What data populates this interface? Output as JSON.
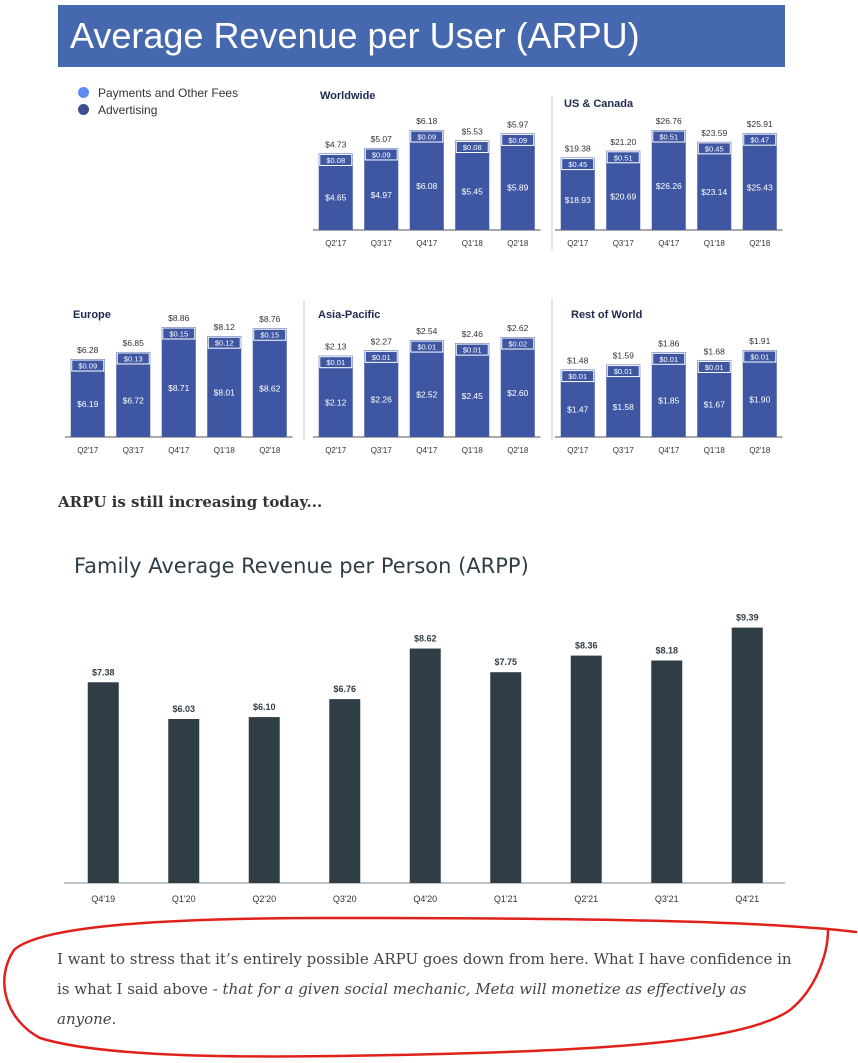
{
  "banner": {
    "title": "Average Revenue per User (ARPU)"
  },
  "legend": [
    {
      "label": "Payments and Other Fees",
      "color": "#5B8DEF"
    },
    {
      "label": "Advertising",
      "color": "#3B4F8F"
    }
  ],
  "colors": {
    "banner": "#4668AF",
    "bar": "#3F57A3",
    "bar_cap": "#3F57A3",
    "arpp_bar": "#2F3E46",
    "annotation": "#E0201B"
  },
  "chart_data": [
    {
      "type": "bar",
      "title": "Worldwide",
      "categories": [
        "Q2'17",
        "Q3'17",
        "Q4'17",
        "Q1'18",
        "Q2'18"
      ],
      "series": [
        {
          "name": "Advertising",
          "values": [
            4.65,
            4.97,
            6.08,
            5.45,
            5.89
          ],
          "labels": [
            "$4.65",
            "$4.97",
            "$6.08",
            "$5.45",
            "$5.89"
          ]
        },
        {
          "name": "Payments and Other Fees",
          "values": [
            0.08,
            0.09,
            0.09,
            0.08,
            0.09
          ],
          "labels": [
            "$0.08",
            "$0.09",
            "$0.09",
            "$0.08",
            "$0.09"
          ]
        }
      ],
      "totals": [
        4.73,
        5.07,
        6.18,
        5.53,
        5.97
      ],
      "total_labels": [
        "$4.73",
        "$5.07",
        "$6.18",
        "$5.53",
        "$5.97"
      ]
    },
    {
      "type": "bar",
      "title": "US & Canada",
      "categories": [
        "Q2'17",
        "Q3'17",
        "Q4'17",
        "Q1'18",
        "Q2'18"
      ],
      "series": [
        {
          "name": "Advertising",
          "values": [
            18.93,
            20.69,
            26.26,
            23.14,
            25.43
          ],
          "labels": [
            "$18.93",
            "$20.69",
            "$26.26",
            "$23.14",
            "$25.43"
          ]
        },
        {
          "name": "Payments and Other Fees",
          "values": [
            0.45,
            0.51,
            0.51,
            0.45,
            0.47
          ],
          "labels": [
            "$0.45",
            "$0.51",
            "$0.51",
            "$0.45",
            "$0.47"
          ]
        }
      ],
      "totals": [
        19.38,
        21.2,
        26.76,
        23.59,
        25.91
      ],
      "total_labels": [
        "$19.38",
        "$21.20",
        "$26.76",
        "$23.59",
        "$25.91"
      ]
    },
    {
      "type": "bar",
      "title": "Europe",
      "categories": [
        "Q2'17",
        "Q3'17",
        "Q4'17",
        "Q1'18",
        "Q2'18"
      ],
      "series": [
        {
          "name": "Advertising",
          "values": [
            6.19,
            6.72,
            8.71,
            8.01,
            8.62
          ],
          "labels": [
            "$6.19",
            "$6.72",
            "$8.71",
            "$8.01",
            "$8.62"
          ]
        },
        {
          "name": "Payments and Other Fees",
          "values": [
            0.09,
            0.13,
            0.15,
            0.12,
            0.15
          ],
          "labels": [
            "$0.09",
            "$0.13",
            "$0.15",
            "$0.12",
            "$0.15"
          ]
        }
      ],
      "totals": [
        6.28,
        6.85,
        8.86,
        8.12,
        8.76
      ],
      "total_labels": [
        "$6.28",
        "$6.85",
        "$8.86",
        "$8.12",
        "$8.76"
      ]
    },
    {
      "type": "bar",
      "title": "Asia-Pacific",
      "categories": [
        "Q2'17",
        "Q3'17",
        "Q4'17",
        "Q1'18",
        "Q2'18"
      ],
      "series": [
        {
          "name": "Advertising",
          "values": [
            2.12,
            2.26,
            2.52,
            2.45,
            2.6
          ],
          "labels": [
            "$2.12",
            "$2.26",
            "$2.52",
            "$2.45",
            "$2.60"
          ]
        },
        {
          "name": "Payments and Other Fees",
          "values": [
            0.01,
            0.01,
            0.01,
            0.01,
            0.02
          ],
          "labels": [
            "$0.01",
            "$0.01",
            "$0.01",
            "$0.01",
            "$0.02"
          ]
        }
      ],
      "totals": [
        2.13,
        2.27,
        2.54,
        2.46,
        2.62
      ],
      "total_labels": [
        "$2.13",
        "$2.27",
        "$2.54",
        "$2.46",
        "$2.62"
      ]
    },
    {
      "type": "bar",
      "title": "Rest of World",
      "categories": [
        "Q2'17",
        "Q3'17",
        "Q4'17",
        "Q1'18",
        "Q2'18"
      ],
      "series": [
        {
          "name": "Advertising",
          "values": [
            1.47,
            1.58,
            1.85,
            1.67,
            1.9
          ],
          "labels": [
            "$1.47",
            "$1.58",
            "$1.85",
            "$1.67",
            "$1.90"
          ]
        },
        {
          "name": "Payments and Other Fees",
          "values": [
            0.01,
            0.01,
            0.01,
            0.01,
            0.01
          ],
          "labels": [
            "$0.01",
            "$0.01",
            "$0.01",
            "$0.01",
            "$0.01"
          ]
        }
      ],
      "totals": [
        1.48,
        1.59,
        1.86,
        1.68,
        1.91
      ],
      "total_labels": [
        "$1.48",
        "$1.59",
        "$1.86",
        "$1.68",
        "$1.91"
      ]
    },
    {
      "type": "bar",
      "title": "Family Average Revenue per Person (ARPP)",
      "categories": [
        "Q4'19",
        "Q1'20",
        "Q2'20",
        "Q3'20",
        "Q4'20",
        "Q1'21",
        "Q2'21",
        "Q3'21",
        "Q4'21"
      ],
      "values": [
        7.38,
        6.03,
        6.1,
        6.76,
        8.62,
        7.75,
        8.36,
        8.18,
        9.39
      ],
      "labels": [
        "$7.38",
        "$6.03",
        "$6.10",
        "$6.76",
        "$8.62",
        "$7.75",
        "$8.36",
        "$8.18",
        "$9.39"
      ]
    }
  ],
  "text": {
    "sentence": "ARPU is still increasing today...",
    "note_plain": "I want to stress that it’s entirely possible ARPU goes down from here. What I have confidence in is what I said above - ",
    "note_italic": "that for a given social mechanic, Meta will monetize as effectively as anyone."
  }
}
